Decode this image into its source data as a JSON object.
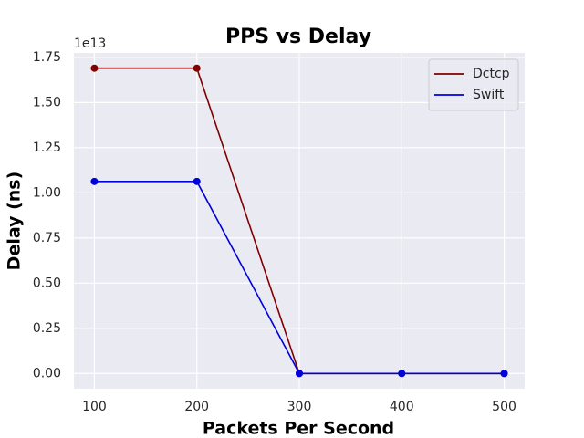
{
  "chart_data": {
    "type": "line",
    "title": "PPS vs Delay",
    "x_label": "Packets Per Second",
    "y_label": "Delay (ns)",
    "y_offset_label": "1e13",
    "x": [
      100,
      200,
      300,
      400,
      500
    ],
    "series": [
      {
        "name": "Dctcp",
        "color": "#800000",
        "values": [
          16900000000000,
          16900000000000,
          0,
          0,
          0
        ]
      },
      {
        "name": "Swift",
        "color": "#0000dd",
        "values": [
          10630000000000,
          10630000000000,
          0,
          0,
          0
        ]
      }
    ],
    "xlim": [
      80,
      520
    ],
    "xticks": [
      100,
      200,
      300,
      400,
      500
    ],
    "ylim": [
      -845000000000,
      17745000000000
    ],
    "yticks": [
      {
        "value": 0,
        "label": "0.00"
      },
      {
        "value": 2500000000000,
        "label": "0.25"
      },
      {
        "value": 5000000000000,
        "label": "0.50"
      },
      {
        "value": 7500000000000,
        "label": "0.75"
      },
      {
        "value": 10000000000000,
        "label": "1.00"
      },
      {
        "value": 12500000000000,
        "label": "1.25"
      },
      {
        "value": 15000000000000,
        "label": "1.50"
      },
      {
        "value": 17500000000000,
        "label": "1.75"
      }
    ],
    "grid": true,
    "legend": "upper right",
    "markers": true
  }
}
